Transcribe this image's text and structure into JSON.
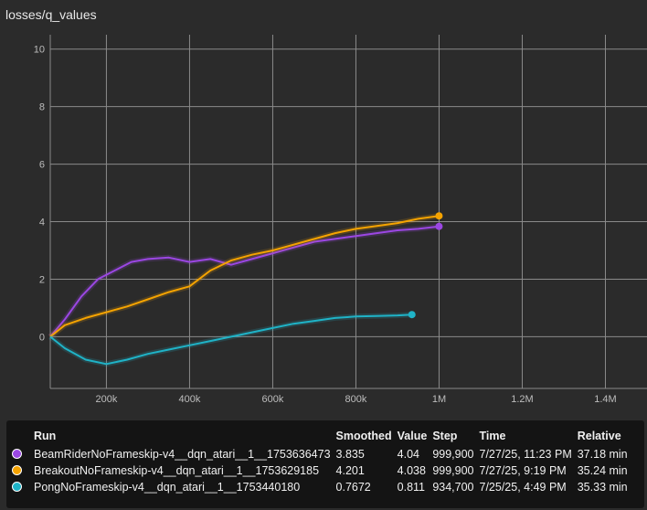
{
  "card": {
    "title": "losses/q_values"
  },
  "chart_data": {
    "type": "line",
    "xlim": [
      65000,
      1500000
    ],
    "ylim": [
      -1.8,
      10.5
    ],
    "x_ticks": [
      200000,
      400000,
      600000,
      800000,
      1000000,
      1200000,
      1400000
    ],
    "x_tick_labels": [
      "200k",
      "400k",
      "600k",
      "800k",
      "1M",
      "1.2M",
      "1.4M"
    ],
    "y_ticks": [
      0,
      2,
      4,
      6,
      8,
      10
    ],
    "y_tick_labels": [
      "0",
      "2",
      "4",
      "6",
      "8",
      "10"
    ],
    "grid": true,
    "series": [
      {
        "name": "BeamRiderNoFrameskip-v4__dqn_atari__1__1753636473",
        "color": "#9b47e3",
        "x": [
          65000,
          100000,
          140000,
          180000,
          220000,
          260000,
          300000,
          350000,
          400000,
          450000,
          500000,
          550000,
          600000,
          650000,
          700000,
          750000,
          800000,
          850000,
          900000,
          950000,
          999900
        ],
        "y": [
          0.0,
          0.6,
          1.4,
          2.0,
          2.3,
          2.6,
          2.7,
          2.75,
          2.6,
          2.7,
          2.5,
          2.7,
          2.9,
          3.1,
          3.3,
          3.4,
          3.5,
          3.6,
          3.7,
          3.75,
          3.835
        ]
      },
      {
        "name": "BreakoutNoFrameskip-v4__dqn_atari__1__1753629185",
        "color": "#f5a300",
        "x": [
          65000,
          100000,
          150000,
          200000,
          250000,
          300000,
          350000,
          400000,
          450000,
          500000,
          550000,
          600000,
          650000,
          700000,
          750000,
          800000,
          850000,
          900000,
          950000,
          999900
        ],
        "y": [
          0.0,
          0.4,
          0.65,
          0.85,
          1.05,
          1.3,
          1.55,
          1.75,
          2.3,
          2.65,
          2.85,
          3.0,
          3.2,
          3.4,
          3.6,
          3.75,
          3.85,
          3.95,
          4.1,
          4.201
        ]
      },
      {
        "name": "PongNoFrameskip-v4__dqn_atari__1__1753440180",
        "color": "#1fb3c7",
        "x": [
          65000,
          100000,
          150000,
          200000,
          250000,
          300000,
          350000,
          400000,
          450000,
          500000,
          550000,
          600000,
          650000,
          700000,
          750000,
          800000,
          850000,
          900000,
          934700
        ],
        "y": [
          0.0,
          -0.4,
          -0.8,
          -0.95,
          -0.8,
          -0.6,
          -0.45,
          -0.3,
          -0.15,
          0.0,
          0.15,
          0.3,
          0.45,
          0.55,
          0.65,
          0.7,
          0.72,
          0.74,
          0.7672
        ]
      }
    ]
  },
  "tooltip": {
    "headers": {
      "run": "Run",
      "smoothed": "Smoothed",
      "value": "Value",
      "step": "Step",
      "time": "Time",
      "relative": "Relative"
    },
    "rows": [
      {
        "color": "#9b47e3",
        "run": "BeamRiderNoFrameskip-v4__dqn_atari__1__1753636473",
        "smoothed": "3.835",
        "value": "4.04",
        "step": "999,900",
        "time": "7/27/25, 11:23 PM",
        "relative": "37.18 min"
      },
      {
        "color": "#f5a300",
        "run": "BreakoutNoFrameskip-v4__dqn_atari__1__1753629185",
        "smoothed": "4.201",
        "value": "4.038",
        "step": "999,900",
        "time": "7/27/25, 9:19 PM",
        "relative": "35.24 min"
      },
      {
        "color": "#1fb3c7",
        "run": "PongNoFrameskip-v4__dqn_atari__1__1753440180",
        "smoothed": "0.7672",
        "value": "0.811",
        "step": "934,700",
        "time": "7/25/25, 4:49 PM",
        "relative": "35.33 min"
      }
    ]
  }
}
